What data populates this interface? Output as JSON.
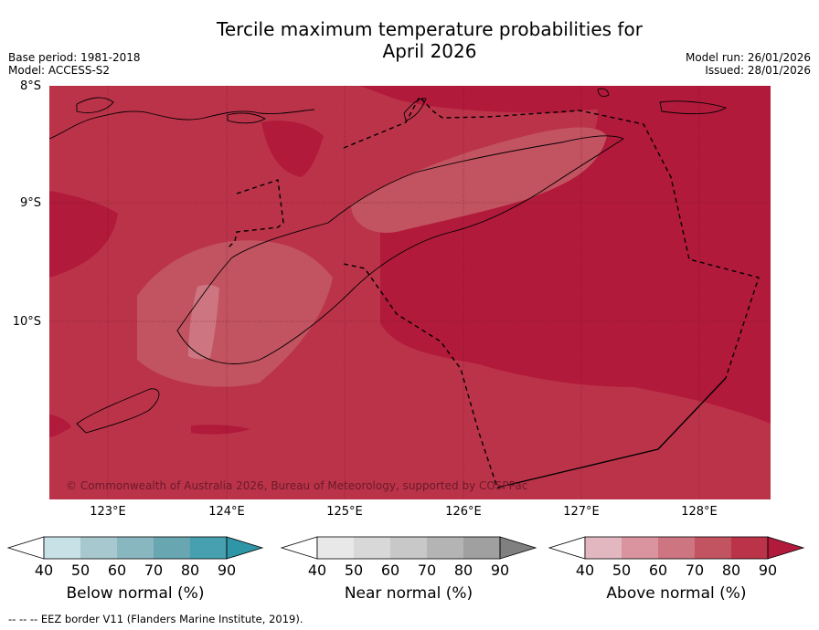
{
  "title_line1": "Tercile maximum temperature probabilities for",
  "title_line2": "April 2026",
  "meta_left": {
    "base_period": "Base period: 1981-2018",
    "model": "Model: ACCESS-S2"
  },
  "meta_right": {
    "model_run": "Model run: 26/01/2026",
    "issued": "Issued: 28/01/2026"
  },
  "lat_labels": [
    "8°S",
    "9°S",
    "10°S"
  ],
  "lon_labels": [
    "123°E",
    "124°E",
    "125°E",
    "126°E",
    "127°E",
    "128°E"
  ],
  "copyright": "© Commonwealth of Australia 2026, Bureau of Meteorology, supported by COSPPac",
  "colorbars": [
    {
      "title": "Below normal (%)",
      "ticks": [
        "40",
        "50",
        "60",
        "70",
        "80",
        "90"
      ],
      "colors": [
        "#c8e1e7",
        "#a8c8cf",
        "#89b7c0",
        "#68a6b2",
        "#46a0b0",
        "#2f96a8"
      ]
    },
    {
      "title": "Near normal (%)",
      "ticks": [
        "40",
        "50",
        "60",
        "70",
        "80",
        "90"
      ],
      "colors": [
        "#e8e8e8",
        "#d8d8d8",
        "#c8c8c8",
        "#b4b4b4",
        "#a0a0a0",
        "#808080"
      ]
    },
    {
      "title": "Above normal (%)",
      "ticks": [
        "40",
        "50",
        "60",
        "70",
        "80",
        "90"
      ],
      "colors": [
        "#e2b7bf",
        "#d9949f",
        "#cd7580",
        "#c25360",
        "#bb3349",
        "#b11a3b"
      ]
    }
  ],
  "footer": "--  --  -- EEZ border V11 (Flanders Marine Institute, 2019).",
  "map_colors": {
    "p90": "#b11a3b",
    "p80": "#bb3349",
    "p70": "#c25360",
    "p60": "#cd7580",
    "p50": "#d9949f"
  }
}
